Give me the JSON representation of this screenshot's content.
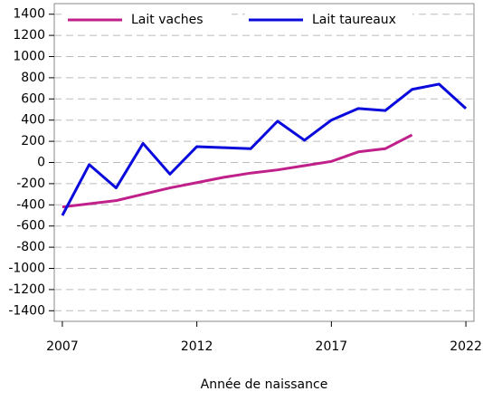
{
  "chart_data": {
    "type": "line",
    "x": [
      2007,
      2008,
      2009,
      2010,
      2011,
      2012,
      2013,
      2014,
      2015,
      2016,
      2017,
      2018,
      2019,
      2020,
      2021,
      2022
    ],
    "series": [
      {
        "name": "Lait vaches",
        "color": "#c0208a",
        "values": [
          -420,
          -390,
          -360,
          -300,
          -240,
          -190,
          -140,
          -100,
          -70,
          -30,
          10,
          100,
          130,
          260,
          null,
          null
        ]
      },
      {
        "name": "Lait taureaux",
        "color": "#0a0adc",
        "values": [
          -500,
          -20,
          -240,
          180,
          -110,
          150,
          140,
          130,
          390,
          210,
          400,
          510,
          490,
          690,
          740,
          510
        ]
      }
    ],
    "xlabel": "Année de naissance",
    "xlim": [
      2006.7,
      2022.3
    ],
    "xticks": [
      2007,
      2012,
      2017,
      2022
    ],
    "ylim": [
      -1500,
      1500
    ],
    "yticks": [
      -1400,
      -1200,
      -1000,
      -800,
      -600,
      -400,
      -200,
      0,
      200,
      400,
      600,
      800,
      1000,
      1200,
      1400
    ],
    "grid": true,
    "legend": "top"
  }
}
